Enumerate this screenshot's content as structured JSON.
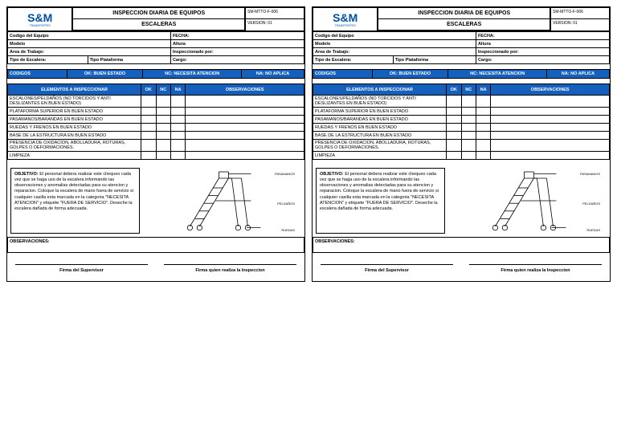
{
  "header": {
    "title": "INSPECCION DIARIA DE EQUIPOS",
    "subtitle": "ESCALERAS",
    "code": "SM-MTTO-F-006",
    "version": "VERSION: 01",
    "logo_text": "S&M",
    "logo_sub": "TRANSPORTES"
  },
  "info": {
    "codigo": "Codigo del Equipo",
    "fecha": "FECHA:",
    "modelo": "Modelo",
    "altura": "Altura",
    "area": "Area de Trabajo:",
    "inspeccionado": "Inspeccionado por:",
    "tipo": "Tipo de Escalera:",
    "plataforma": "Tipo Plataforma",
    "cargo": "Cargo:"
  },
  "codes": {
    "label": "CODIGOS",
    "ok": "OK: BUEN ESTADO",
    "nc": "NC: NECESITA ATENCION",
    "na": "NA: NO APLICA"
  },
  "insp_header": {
    "elementos": "ELEMENTOS A INSPECCIONAR",
    "ok": "OK",
    "nc": "NC",
    "na": "NA",
    "obs": "OBSERVACIONES"
  },
  "items": [
    "ESCALONES/PELDAÑOS (NO TORCIDOS Y ANTI DESLIZANTES EN BUEN ESTADO)",
    "PLATAFORMA SUPERIOR EN BUEN ESTADO",
    "PASAMANOS/BARANDAS EN BUEN ESTADO",
    "RUEDAS Y FRENOS EN BUEN ESTADO",
    "BASE DE LA ESTRUCTURA EN BUEN ESTADO",
    "PRESENCIA DE OXIDACION, ABOLLADURA, ROTURAS, GOLPES O DEFORMACIONES.",
    "LIMPIEZA"
  ],
  "objetivo_label": "OBJETIVO:",
  "objetivo": "El personal debera realizar este chequeo cada vez que se haga uso de la escalera informando las observaciones y anomalias detectadas para su atencion y reparacion. Coloque la escalera de mano fuera de servicio si cualquier casilla esta marcada en la categoria \"NECESITA ATENCION\" y etiquete \"FUERA DE SERVICIO\". Deseche la escalera dañada de forma adecuada.",
  "labels": {
    "pasamanos": "PASAMANOS",
    "peldanos": "PELDAÑOS",
    "ruedas": "RUEDAS"
  },
  "observaciones": "OBSERVACIONES:",
  "firma1": "Firma del Supervisor",
  "firma2": "Firma quien realiza la Inspeccion"
}
